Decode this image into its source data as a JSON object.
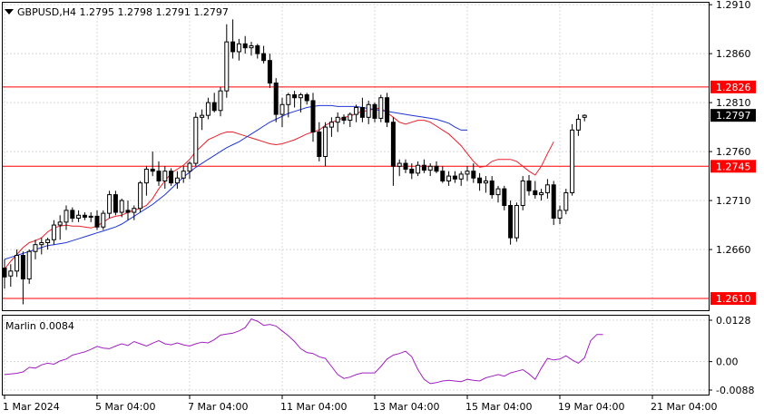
{
  "chart_data": [
    {
      "type": "candlestick",
      "title": "GBPUSD,H4  1.2795 1.2798 1.2791 1.2797",
      "symbol": "GBPUSD",
      "timeframe": "H4",
      "last_ohlc": {
        "open": 1.2795,
        "high": 1.2798,
        "low": 1.2791,
        "close": 1.2797
      },
      "ylim": [
        1.2598,
        1.2912
      ],
      "y_ticks": [
        1.291,
        1.286,
        1.281,
        1.276,
        1.271,
        1.266
      ],
      "x_tick_labels": [
        "1 Mar 2024",
        "5 Mar 04:00",
        "7 Mar 04:00",
        "11 Mar 04:00",
        "13 Mar 04:00",
        "15 Mar 04:00",
        "19 Mar 04:00",
        "21 Mar 04:00"
      ],
      "x_tick_index": [
        0,
        15,
        30,
        45,
        60,
        75,
        90,
        105
      ],
      "grid": true,
      "current_price": 1.2797,
      "levels": [
        {
          "value": 1.2826,
          "label": "1.2826",
          "color": "#ff0000"
        },
        {
          "value": 1.2745,
          "label": "1.2745",
          "color": "#ff0000"
        },
        {
          "value": 1.261,
          "label": "1.2610",
          "color": "#ff0000"
        }
      ],
      "candles": [
        [
          1.2641,
          1.265,
          1.262,
          1.2632
        ],
        [
          1.2633,
          1.2645,
          1.2622,
          1.2638
        ],
        [
          1.2638,
          1.266,
          1.2632,
          1.2654
        ],
        [
          1.2654,
          1.2658,
          1.2604,
          1.263
        ],
        [
          1.263,
          1.266,
          1.2625,
          1.2658
        ],
        [
          1.2658,
          1.267,
          1.265,
          1.2665
        ],
        [
          1.2665,
          1.2672,
          1.2655,
          1.2667
        ],
        [
          1.2667,
          1.2672,
          1.266,
          1.267
        ],
        [
          1.267,
          1.269,
          1.2665,
          1.2685
        ],
        [
          1.2685,
          1.2695,
          1.267,
          1.2688
        ],
        [
          1.2688,
          1.2705,
          1.268,
          1.27
        ],
        [
          1.27,
          1.2703,
          1.2688,
          1.2692
        ],
        [
          1.2692,
          1.27,
          1.2688,
          1.2695
        ],
        [
          1.2695,
          1.2698,
          1.269,
          1.2693
        ],
        [
          1.2693,
          1.2698,
          1.2688,
          1.2694
        ],
        [
          1.2694,
          1.27,
          1.268,
          1.2683
        ],
        [
          1.2683,
          1.27,
          1.268,
          1.2697
        ],
        [
          1.2697,
          1.272,
          1.2692,
          1.2716
        ],
        [
          1.2716,
          1.272,
          1.2695,
          1.2698
        ],
        [
          1.2698,
          1.2712,
          1.2693,
          1.271
        ],
        [
          1.27,
          1.271,
          1.269,
          1.2698
        ],
        [
          1.2698,
          1.2705,
          1.269,
          1.2702
        ],
        [
          1.2702,
          1.273,
          1.2698,
          1.2728
        ],
        [
          1.2728,
          1.2745,
          1.2715,
          1.2742
        ],
        [
          1.2742,
          1.276,
          1.2735,
          1.274
        ],
        [
          1.274,
          1.275,
          1.2725,
          1.273
        ],
        [
          1.273,
          1.2745,
          1.2722,
          1.274
        ],
        [
          1.274,
          1.2743,
          1.2725,
          1.2728
        ],
        [
          1.2728,
          1.274,
          1.2722,
          1.2733
        ],
        [
          1.2733,
          1.2745,
          1.2728,
          1.274
        ],
        [
          1.274,
          1.275,
          1.2732,
          1.2748
        ],
        [
          1.2748,
          1.28,
          1.2745,
          1.2795
        ],
        [
          1.2795,
          1.2803,
          1.2782,
          1.2797
        ],
        [
          1.2797,
          1.2815,
          1.2793,
          1.281
        ],
        [
          1.281,
          1.282,
          1.28,
          1.2802
        ],
        [
          1.2802,
          1.2826,
          1.2796,
          1.2822
        ],
        [
          1.2822,
          1.289,
          1.2815,
          1.2872
        ],
        [
          1.2872,
          1.2895,
          1.2855,
          1.2862
        ],
        [
          1.2862,
          1.2875,
          1.2853,
          1.287
        ],
        [
          1.287,
          1.2878,
          1.286,
          1.2866
        ],
        [
          1.2866,
          1.2872,
          1.2858,
          1.2868
        ],
        [
          1.2868,
          1.287,
          1.2855,
          1.286
        ],
        [
          1.286,
          1.2868,
          1.285,
          1.2853
        ],
        [
          1.2853,
          1.286,
          1.2825,
          1.283
        ],
        [
          1.283,
          1.2835,
          1.279,
          1.2798
        ],
        [
          1.2798,
          1.2815,
          1.2785,
          1.2808
        ],
        [
          1.2808,
          1.282,
          1.2795,
          1.2818
        ],
        [
          1.2818,
          1.2822,
          1.2805,
          1.2815
        ],
        [
          1.2815,
          1.282,
          1.28,
          1.2818
        ],
        [
          1.2818,
          1.282,
          1.2808,
          1.2812
        ],
        [
          1.2812,
          1.282,
          1.277,
          1.278
        ],
        [
          1.278,
          1.279,
          1.275,
          1.2755
        ],
        [
          1.2755,
          1.279,
          1.2745,
          1.2785
        ],
        [
          1.2785,
          1.2795,
          1.2775,
          1.279
        ],
        [
          1.279,
          1.28,
          1.278,
          1.2795
        ],
        [
          1.2795,
          1.2798,
          1.2788,
          1.2792
        ],
        [
          1.2792,
          1.28,
          1.2785,
          1.2798
        ],
        [
          1.2798,
          1.2808,
          1.279,
          1.2805
        ],
        [
          1.2805,
          1.2815,
          1.279,
          1.2795
        ],
        [
          1.2795,
          1.2812,
          1.2788,
          1.2808
        ],
        [
          1.2808,
          1.281,
          1.279,
          1.2794
        ],
        [
          1.2794,
          1.2818,
          1.279,
          1.2815
        ],
        [
          1.2815,
          1.282,
          1.2785,
          1.279
        ],
        [
          1.279,
          1.2795,
          1.2725,
          1.2745
        ],
        [
          1.2745,
          1.2752,
          1.2735,
          1.2748
        ],
        [
          1.2748,
          1.2752,
          1.2738,
          1.2742
        ],
        [
          1.2742,
          1.2748,
          1.2732,
          1.2738
        ],
        [
          1.2738,
          1.275,
          1.2735,
          1.2746
        ],
        [
          1.2746,
          1.2752,
          1.2738,
          1.2741
        ],
        [
          1.2741,
          1.2748,
          1.2735,
          1.2745
        ],
        [
          1.2745,
          1.275,
          1.2738,
          1.274
        ],
        [
          1.274,
          1.2745,
          1.2728,
          1.273
        ],
        [
          1.273,
          1.274,
          1.2725,
          1.2735
        ],
        [
          1.2735,
          1.274,
          1.2728,
          1.2732
        ],
        [
          1.2732,
          1.274,
          1.2725,
          1.2737
        ],
        [
          1.2737,
          1.2745,
          1.273,
          1.274
        ],
        [
          1.274,
          1.2748,
          1.2728,
          1.2733
        ],
        [
          1.2733,
          1.2738,
          1.272,
          1.2728
        ],
        [
          1.2728,
          1.2735,
          1.2718,
          1.273
        ],
        [
          1.273,
          1.2735,
          1.2712,
          1.2716
        ],
        [
          1.2716,
          1.2725,
          1.2708,
          1.2722
        ],
        [
          1.2722,
          1.2725,
          1.27,
          1.2705
        ],
        [
          1.2705,
          1.271,
          1.2665,
          1.2672
        ],
        [
          1.2672,
          1.2708,
          1.2668,
          1.2705
        ],
        [
          1.2705,
          1.2735,
          1.27,
          1.273
        ],
        [
          1.273,
          1.2736,
          1.2715,
          1.272
        ],
        [
          1.272,
          1.273,
          1.2712,
          1.2716
        ],
        [
          1.2716,
          1.2722,
          1.271,
          1.2718
        ],
        [
          1.2718,
          1.2732,
          1.2712,
          1.2726
        ],
        [
          1.2726,
          1.273,
          1.2685,
          1.2692
        ],
        [
          1.2692,
          1.2705,
          1.2686,
          1.27
        ],
        [
          1.27,
          1.2722,
          1.2696,
          1.2718
        ],
        [
          1.2718,
          1.2788,
          1.2715,
          1.2782
        ],
        [
          1.2782,
          1.2798,
          1.2776,
          1.2793
        ],
        [
          1.2795,
          1.2798,
          1.2791,
          1.2797
        ]
      ],
      "ma_red": [
        1.264,
        1.2648,
        1.2655,
        1.2662,
        1.2667,
        1.2669,
        1.2672,
        1.2678,
        1.2682,
        1.2684,
        1.2685,
        1.2684,
        1.2684,
        1.2683,
        1.2682,
        1.2684,
        1.2688,
        1.2692,
        1.2694,
        1.2695,
        1.2698,
        1.27,
        1.2702,
        1.2705,
        1.2712,
        1.2722,
        1.273,
        1.2738,
        1.2742,
        1.2746,
        1.2752,
        1.276,
        1.2766,
        1.2772,
        1.2775,
        1.2778,
        1.278,
        1.278,
        1.2778,
        1.2776,
        1.2774,
        1.2772,
        1.277,
        1.2768,
        1.2767,
        1.2768,
        1.277,
        1.2772,
        1.2775,
        1.2778,
        1.278,
        1.2782,
        1.2787,
        1.279,
        1.2792,
        1.2795,
        1.2796,
        1.2799,
        1.2801,
        1.2802,
        1.2804,
        1.2804,
        1.28,
        1.2795,
        1.279,
        1.2788,
        1.279,
        1.2792,
        1.2792,
        1.279,
        1.2786,
        1.2782,
        1.2778,
        1.2772,
        1.2766,
        1.2758,
        1.275,
        1.2744,
        1.2745,
        1.275,
        1.2752,
        1.2752,
        1.2752,
        1.275,
        1.2745,
        1.274,
        1.2736,
        1.2745,
        1.2758,
        1.277
      ],
      "ma_red_start": 0,
      "ma_blue": [
        1.265,
        1.2652,
        1.2654,
        1.2656,
        1.2658,
        1.266,
        1.2662,
        1.2664,
        1.2665,
        1.2666,
        1.2667,
        1.2669,
        1.2671,
        1.2673,
        1.2675,
        1.2677,
        1.2679,
        1.2681,
        1.2683,
        1.2686,
        1.269,
        1.2694,
        1.2698,
        1.2702,
        1.2706,
        1.2711,
        1.2716,
        1.2722,
        1.2728,
        1.2734,
        1.2739,
        1.2744,
        1.2748,
        1.2752,
        1.2756,
        1.276,
        1.2764,
        1.2767,
        1.277,
        1.2774,
        1.2778,
        1.2782,
        1.2786,
        1.279,
        1.2793,
        1.2796,
        1.2799,
        1.2801,
        1.2803,
        1.2805,
        1.2806,
        1.2807,
        1.2807,
        1.2807,
        1.2806,
        1.2806,
        1.2806,
        1.2806,
        1.2805,
        1.2804,
        1.2803,
        1.2802,
        1.2801,
        1.28,
        1.2799,
        1.2798,
        1.2797,
        1.2796,
        1.2795,
        1.2794,
        1.2793,
        1.2791,
        1.2789,
        1.2785,
        1.2782,
        1.2782
      ],
      "ma_blue_start": 0,
      "colors": {
        "ma_red": "#e8202a",
        "ma_blue": "#1f35d6",
        "levels": "#ff0000",
        "candles": "#000000",
        "grid": "#d8d8d8"
      }
    },
    {
      "type": "line",
      "title": "Marlin 0.0084",
      "indicator": "Marlin",
      "current_value": 0.0084,
      "ylim": [
        -0.0102,
        0.0142
      ],
      "y_ticks": [
        0.0128,
        0.0,
        -0.0088
      ],
      "y_tick_labels": [
        "0.0128",
        "0.00",
        "-0.0088"
      ],
      "line_color": "#a020c0",
      "values": [
        -0.004,
        -0.0038,
        -0.0036,
        -0.0032,
        -0.0018,
        -0.002,
        -0.001,
        -0.0005,
        -0.0008,
        0.0002,
        0.0008,
        0.002,
        0.0025,
        0.003,
        0.0038,
        0.0047,
        0.0042,
        0.004,
        0.0048,
        0.0055,
        0.005,
        0.0062,
        0.0055,
        0.0048,
        0.0057,
        0.0065,
        0.0055,
        0.0052,
        0.0058,
        0.0052,
        0.0048,
        0.0055,
        0.006,
        0.0058,
        0.0068,
        0.0082,
        0.0085,
        0.0088,
        0.0095,
        0.0105,
        0.0132,
        0.0125,
        0.0112,
        0.0115,
        0.011,
        0.0095,
        0.008,
        0.0062,
        0.004,
        0.0028,
        0.0025,
        0.0015,
        0.001,
        -0.0015,
        -0.004,
        -0.0052,
        -0.0048,
        -0.004,
        -0.0035,
        -0.0035,
        -0.0035,
        -0.0015,
        0.0008,
        0.002,
        0.0025,
        0.0032,
        0.0015,
        -0.0025,
        -0.0055,
        -0.0068,
        -0.0065,
        -0.006,
        -0.0058,
        -0.006,
        -0.0062,
        -0.0055,
        -0.0058,
        -0.006,
        -0.005,
        -0.0045,
        -0.004,
        -0.0045,
        -0.0035,
        -0.003,
        -0.0025,
        -0.0038,
        -0.0055,
        -0.002,
        0.001,
        0.0005,
        0.0008,
        0.0018,
        0.0005,
        -0.0005,
        0.0012,
        0.0065,
        0.0084,
        0.0084
      ],
      "values_start": 0
    }
  ]
}
